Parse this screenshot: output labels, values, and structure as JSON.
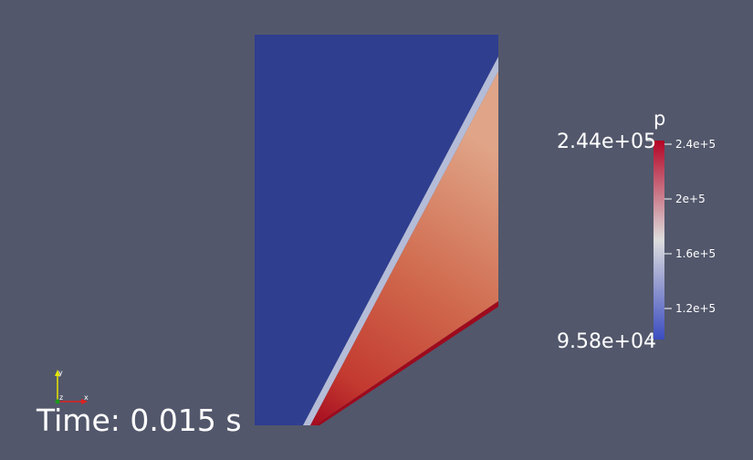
{
  "time_annotation": "Time: 0.015 s",
  "colorbar": {
    "title": "p",
    "range_max": "2.44e+05",
    "range_min": "9.58e+04",
    "ticks": [
      "2.4e+5",
      "2e+5",
      "1.6e+5",
      "1.2e+5"
    ],
    "colors": [
      "#3b4cc0",
      "#dddddd",
      "#b40426"
    ]
  },
  "orientation_axes": {
    "x": "x",
    "y": "y",
    "z": "z"
  },
  "colors": {
    "background": "#52576b",
    "low_region": "#2f3e8f",
    "text": "#ffffff"
  }
}
